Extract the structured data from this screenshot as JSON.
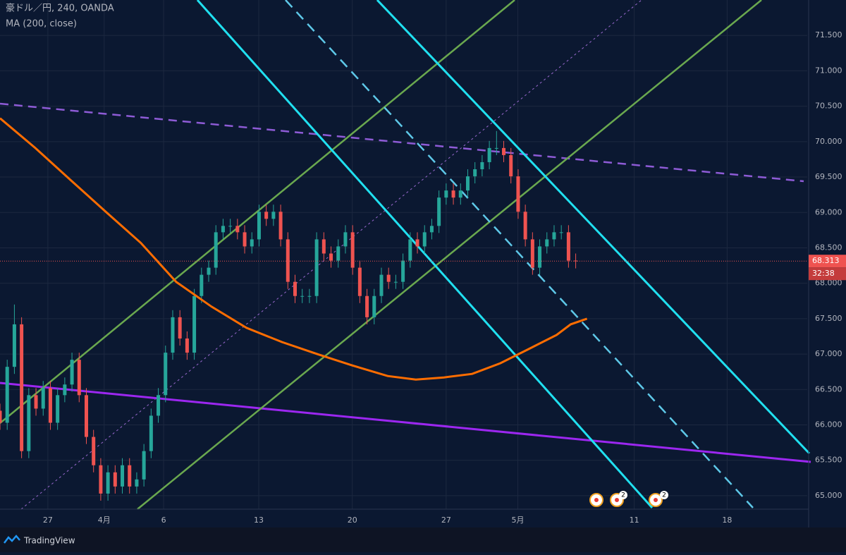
{
  "chart_data": {
    "type": "candlestick",
    "title": "豪ドル／円, 240, OANDA",
    "up_color": "#26a69a",
    "down_color": "#ef5350",
    "xlim": [
      0,
      258
    ],
    "ylim": [
      64.81,
      72.0
    ],
    "xticks": [
      {
        "value": 15.3,
        "label": "27"
      },
      {
        "value": 33.3,
        "label": "4月"
      },
      {
        "value": 52.3,
        "label": "6"
      },
      {
        "value": 82.7,
        "label": "13"
      },
      {
        "value": 112.6,
        "label": "20"
      },
      {
        "value": 142.6,
        "label": "27"
      },
      {
        "value": 165.5,
        "label": "5月"
      },
      {
        "value": 202.7,
        "label": "11"
      },
      {
        "value": 232.4,
        "label": "18"
      }
    ],
    "yticks": [
      {
        "value": 65,
        "label": "65.000"
      },
      {
        "value": 65.5,
        "label": "65.500"
      },
      {
        "value": 66,
        "label": "66.000"
      },
      {
        "value": 66.5,
        "label": "66.500"
      },
      {
        "value": 67,
        "label": "67.000"
      },
      {
        "value": 67.5,
        "label": "67.500"
      },
      {
        "value": 68,
        "label": "68.000"
      },
      {
        "value": 68.5,
        "label": "68.500"
      },
      {
        "value": 69,
        "label": "69.000"
      },
      {
        "value": 69.5,
        "label": "69.500"
      },
      {
        "value": 70,
        "label": "70.000"
      },
      {
        "value": 70.5,
        "label": "70.500"
      },
      {
        "value": 71,
        "label": "71.000"
      },
      {
        "value": 71.5,
        "label": "71.500"
      }
    ],
    "grid": true,
    "candles": {
      "x": [
        0,
        2.3,
        4.6,
        6.9,
        9.2,
        11.5,
        13.8,
        16.1,
        18.4,
        20.7,
        23,
        25.3,
        27.6,
        29.9,
        32.2,
        34.5,
        36.8,
        39.1,
        41.4,
        43.7,
        46,
        48.3,
        50.6,
        52.9,
        55.2,
        57.5,
        59.8,
        62.1,
        64.4,
        66.7,
        69,
        71.3,
        73.6,
        75.9,
        78.2,
        80.5,
        82.8,
        85.1,
        87.4,
        89.7,
        92,
        94.3,
        96.6,
        98.9,
        101.2,
        103.5,
        105.8,
        108.1,
        110.4,
        112.7,
        115,
        117.3,
        119.6,
        121.9,
        124.2,
        126.5,
        128.8,
        131.1,
        133.4,
        135.7,
        138,
        140.3,
        142.6,
        144.9,
        147.2,
        149.5,
        151.8,
        154.1,
        156.4,
        158.7,
        161,
        163.3,
        165.6,
        167.9,
        170.2,
        172.5,
        174.8,
        177.1,
        179.4,
        181.7,
        184
      ],
      "open": [
        66.2,
        66.03,
        66.82,
        67.42,
        65.63,
        66.42,
        66.23,
        66.52,
        66.03,
        66.42,
        66.57,
        66.92,
        66.42,
        65.83,
        65.43,
        65.03,
        65.33,
        65.13,
        65.43,
        65.13,
        65.23,
        65.63,
        66.13,
        66.42,
        67.02,
        67.52,
        67.22,
        67.02,
        67.82,
        68.12,
        68.22,
        68.72,
        68.81,
        68.81,
        68.72,
        68.52,
        68.62,
        69.01,
        68.91,
        69.01,
        68.62,
        68.02,
        67.82,
        67.82,
        67.82,
        68.62,
        68.42,
        68.32,
        68.52,
        68.72,
        68.22,
        67.82,
        67.52,
        67.82,
        68.12,
        68.02,
        68.02,
        68.32,
        68.62,
        68.52,
        68.72,
        68.81,
        69.21,
        69.31,
        69.21,
        69.31,
        69.51,
        69.61,
        69.71,
        69.91,
        69.91,
        69.81,
        69.51,
        69.01,
        68.62,
        68.22,
        68.52,
        68.62,
        68.72,
        68.72,
        68.32
      ],
      "high": [
        66.3,
        66.92,
        67.7,
        67.52,
        66.52,
        66.52,
        66.62,
        66.62,
        66.52,
        66.67,
        67.02,
        67.02,
        66.52,
        65.93,
        65.53,
        65.43,
        65.43,
        65.53,
        65.53,
        65.33,
        65.73,
        66.23,
        66.52,
        67.12,
        67.62,
        67.62,
        67.32,
        67.92,
        68.22,
        68.32,
        68.82,
        68.91,
        68.91,
        68.91,
        68.82,
        68.72,
        69.11,
        69.11,
        69.11,
        69.11,
        68.72,
        68.12,
        67.92,
        67.92,
        68.72,
        68.72,
        68.52,
        68.62,
        68.82,
        68.82,
        68.32,
        67.92,
        67.92,
        68.22,
        68.22,
        68.12,
        68.42,
        68.72,
        68.72,
        68.82,
        68.91,
        69.31,
        69.41,
        69.41,
        69.41,
        69.61,
        69.71,
        69.81,
        70.01,
        70.15,
        70.01,
        69.91,
        69.61,
        69.11,
        68.72,
        68.62,
        68.72,
        68.82,
        68.82,
        68.82,
        68.42
      ],
      "low": [
        65.93,
        65.93,
        66.72,
        65.53,
        65.53,
        66.13,
        66.13,
        65.93,
        65.93,
        66.32,
        66.47,
        66.32,
        65.73,
        65.33,
        64.93,
        64.93,
        65.03,
        65.03,
        65.03,
        65.03,
        65.13,
        65.53,
        66.03,
        66.32,
        66.92,
        67.12,
        66.92,
        66.92,
        67.72,
        68.02,
        68.12,
        68.62,
        68.71,
        68.62,
        68.42,
        68.42,
        68.52,
        68.81,
        68.81,
        68.52,
        67.92,
        67.72,
        67.72,
        67.72,
        67.72,
        68.32,
        68.22,
        68.22,
        68.42,
        68.12,
        67.72,
        67.42,
        67.42,
        67.72,
        67.92,
        67.92,
        67.92,
        68.22,
        68.42,
        68.42,
        68.62,
        68.71,
        69.11,
        69.11,
        69.11,
        69.21,
        69.41,
        69.51,
        69.61,
        69.81,
        69.71,
        69.41,
        68.91,
        68.52,
        68.12,
        68.12,
        68.42,
        68.52,
        68.62,
        68.22,
        68.21
      ],
      "close": [
        66.03,
        66.82,
        67.42,
        65.63,
        66.42,
        66.23,
        66.52,
        66.03,
        66.42,
        66.57,
        66.92,
        66.42,
        65.83,
        65.43,
        65.03,
        65.33,
        65.13,
        65.43,
        65.13,
        65.23,
        65.63,
        66.13,
        66.42,
        67.02,
        67.52,
        67.22,
        67.02,
        67.82,
        68.12,
        68.22,
        68.72,
        68.81,
        68.81,
        68.72,
        68.52,
        68.62,
        69.01,
        68.91,
        69.01,
        68.62,
        68.02,
        67.82,
        67.82,
        67.82,
        68.62,
        68.42,
        68.32,
        68.52,
        68.72,
        68.22,
        67.82,
        67.52,
        67.82,
        68.12,
        68.02,
        68.02,
        68.32,
        68.62,
        68.52,
        68.72,
        68.81,
        69.21,
        69.31,
        69.21,
        69.31,
        69.51,
        69.61,
        69.71,
        69.91,
        69.91,
        69.81,
        69.51,
        69.01,
        68.62,
        68.22,
        68.52,
        68.62,
        68.72,
        68.72,
        68.32,
        68.313
      ]
    },
    "series": [
      {
        "name": "MA (200, close)",
        "color": "#ff6d00",
        "x": [
          0,
          11.3,
          22.5,
          33.8,
          45,
          56.3,
          67.6,
          78.8,
          90.1,
          101.4,
          112.6,
          123.9,
          132.9,
          141.9,
          150.9,
          159.9,
          168.9,
          177.9,
          182.4,
          187.6
        ],
        "values": [
          70.33,
          69.91,
          69.46,
          69.01,
          68.57,
          68.02,
          67.67,
          67.37,
          67.17,
          67.0,
          66.84,
          66.69,
          66.64,
          66.67,
          66.72,
          66.87,
          67.07,
          67.27,
          67.42,
          67.5
        ]
      }
    ],
    "last_price": {
      "value": 68.313,
      "label": "68.313"
    },
    "countdown": "32:38",
    "event_badges": [
      "2",
      "2"
    ],
    "brand": "TradingView"
  }
}
